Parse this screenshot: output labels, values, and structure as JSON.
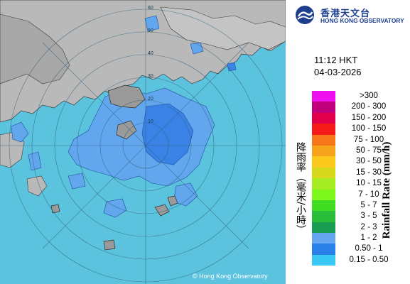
{
  "map": {
    "copyright": "© Hong Kong Observatory",
    "range_ring_labels": [
      "10",
      "20",
      "30",
      "40",
      "50",
      "60"
    ],
    "colors": {
      "sea": "#5cc3df",
      "land": "#b9b9b9",
      "rain_light": "#62a6ee",
      "rain_medium": "#3a82e6"
    }
  },
  "header": {
    "org_name_zh": "香港天文台",
    "org_name_en": "HONG KONG OBSERVATORY",
    "logo": "hko-logo-icon"
  },
  "timestamp": {
    "time": "11:12 HKT",
    "date": "04-03-2026"
  },
  "legend": {
    "title_zh": "降雨率（毫米/小時）",
    "title_en": "Rainfall Rate (mm/h)",
    "items": [
      {
        "label": ">300",
        "color": "#ee10ee"
      },
      {
        "label": "200 - 300",
        "color": "#c1007e"
      },
      {
        "label": "150 - 200",
        "color": "#e2004c"
      },
      {
        "label": "100 - 150",
        "color": "#f61a1a"
      },
      {
        "label": "75 - 100",
        "color": "#f6781a"
      },
      {
        "label": "50 - 75",
        "color": "#f5a41b"
      },
      {
        "label": "30 - 50",
        "color": "#fbc81c"
      },
      {
        "label": "15 - 30",
        "color": "#d6d81c"
      },
      {
        "label": "10 - 15",
        "color": "#a6ec23"
      },
      {
        "label": "7 - 10",
        "color": "#7cf81d"
      },
      {
        "label": "5 - 7",
        "color": "#41dd22"
      },
      {
        "label": "3 - 5",
        "color": "#29bd3a"
      },
      {
        "label": "2 - 3",
        "color": "#1a9d52"
      },
      {
        "label": "1 - 2",
        "color": "#66a6f0"
      },
      {
        "label": "0.50 - 1",
        "color": "#2a82e8"
      },
      {
        "label": "0.15 - 0.50",
        "color": "#39c8f3"
      }
    ]
  }
}
